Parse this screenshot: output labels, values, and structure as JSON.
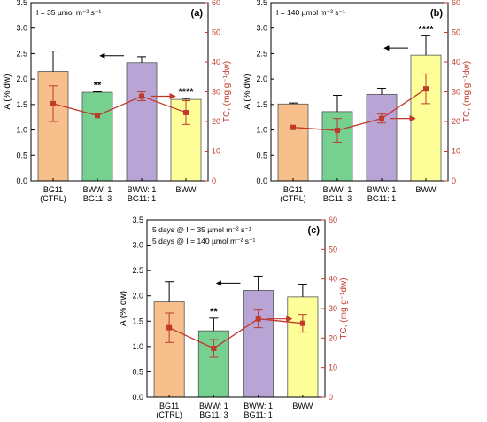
{
  "chart_data": [
    {
      "type": "bar",
      "panel_label": "(a)",
      "condition_lines": [
        "I = 35 µmol m⁻² s⁻¹"
      ],
      "categories": [
        [
          "BG11",
          "(CTRL)"
        ],
        [
          "BWW: 1",
          "BG11: 3"
        ],
        [
          "BWW: 1",
          "BG11: 1"
        ],
        [
          "BWW"
        ]
      ],
      "ylabel": "A (% dw)",
      "y2label": "TC, (mg g⁻¹dw)",
      "ylim": [
        0,
        3.5
      ],
      "y2lim": [
        0,
        60
      ],
      "yticks": [
        "0.0",
        "0.5",
        "1.0",
        "1.5",
        "2.0",
        "2.5",
        "3.0",
        "3.5"
      ],
      "y2ticks": [
        "0",
        "10",
        "20",
        "30",
        "40",
        "50",
        "60"
      ],
      "bars": {
        "values": [
          2.15,
          1.74,
          2.32,
          1.6
        ],
        "errors": [
          0.4,
          0.01,
          0.12,
          0.02
        ]
      },
      "line": {
        "values": [
          26,
          22,
          28.5,
          23
        ],
        "errors": [
          6,
          0,
          1.5,
          4
        ]
      },
      "significance": [
        "",
        "**",
        "",
        "****"
      ],
      "arrow_bar_index": 2,
      "arrow_line_index": 2
    },
    {
      "type": "bar",
      "panel_label": "(b)",
      "condition_lines": [
        "I = 140 µmol m⁻² s⁻¹"
      ],
      "categories": [
        [
          "BG11",
          "(CTRL)"
        ],
        [
          "BWW: 1",
          "BG11: 3"
        ],
        [
          "BWW: 1",
          "BG11: 1"
        ],
        [
          "BWW"
        ]
      ],
      "ylabel": "A (% dw)",
      "y2label": "TC, (mg g⁻¹dw)",
      "ylim": [
        0,
        3.5
      ],
      "y2lim": [
        0,
        60
      ],
      "yticks": [
        "0.0",
        "0.5",
        "1.0",
        "1.5",
        "2.0",
        "2.5",
        "3.0",
        "3.5"
      ],
      "y2ticks": [
        "0",
        "10",
        "20",
        "30",
        "40",
        "50",
        "60"
      ],
      "bars": {
        "values": [
          1.51,
          1.36,
          1.7,
          2.47
        ],
        "errors": [
          0.02,
          0.32,
          0.12,
          0.38
        ]
      },
      "line": {
        "values": [
          18,
          17,
          21,
          31
        ],
        "errors": [
          0,
          4,
          1.5,
          5
        ]
      },
      "significance": [
        "",
        "",
        "",
        "****"
      ],
      "arrow_bar_index": 3,
      "arrow_line_index": 2
    },
    {
      "type": "bar",
      "panel_label": "(c)",
      "condition_lines": [
        "5 days @ I = 35 µmol m⁻² s⁻¹",
        "5 days @ I = 140 µmol m⁻² s⁻¹"
      ],
      "categories": [
        [
          "BG11",
          "(CTRL)"
        ],
        [
          "BWW: 1",
          "BG11: 3"
        ],
        [
          "BWW: 1",
          "BG11: 1"
        ],
        [
          "BWW"
        ]
      ],
      "ylabel": "A (% dw)",
      "y2label": "TC, (mg g⁻¹dw)",
      "ylim": [
        0,
        3.5
      ],
      "y2lim": [
        0,
        60
      ],
      "yticks": [
        "0.0",
        "0.5",
        "1.0",
        "1.5",
        "2.0",
        "2.5",
        "3.0",
        "3.5"
      ],
      "y2ticks": [
        "0",
        "10",
        "20",
        "30",
        "40",
        "50",
        "60"
      ],
      "bars": {
        "values": [
          1.88,
          1.31,
          2.11,
          1.98
        ],
        "errors": [
          0.4,
          0.25,
          0.28,
          0.25
        ]
      },
      "line": {
        "values": [
          23.5,
          16.5,
          26.5,
          25
        ],
        "errors": [
          5,
          3,
          3,
          3
        ]
      },
      "significance": [
        "",
        "**",
        "",
        ""
      ],
      "arrow_bar_index": 2,
      "arrow_line_index": 2
    }
  ],
  "colors": {
    "bar_fills": [
      "#f7bf8c",
      "#76d08f",
      "#b9a4d6",
      "#ffff99"
    ],
    "bar_stroke": "#555555",
    "line": "#c0392b"
  }
}
